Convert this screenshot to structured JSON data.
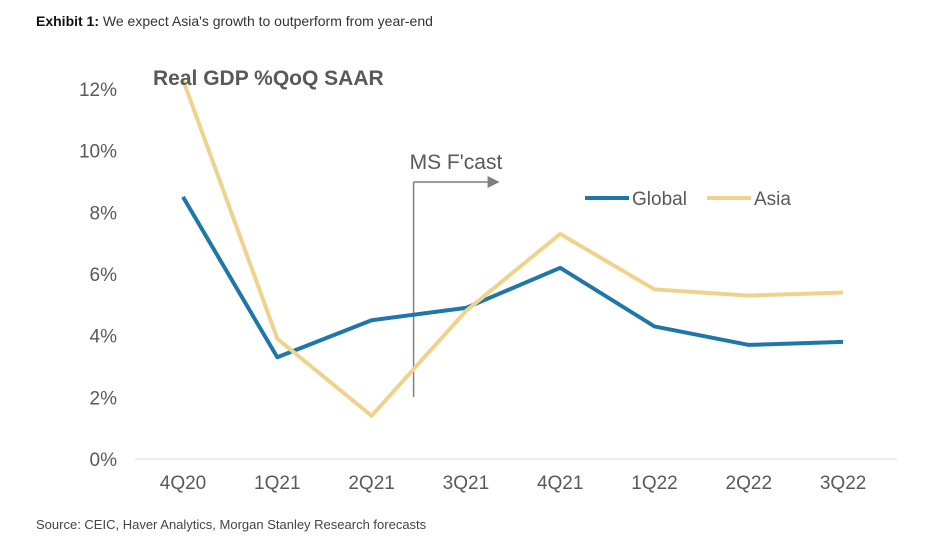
{
  "header": {
    "exhibit_label": "Exhibit 1:",
    "exhibit_text": "We expect Asia's growth to outperform from year-end"
  },
  "source": "Source: CEIC, Haver Analytics, Morgan Stanley Research forecasts",
  "chart_data": {
    "type": "line",
    "title": "Real GDP %QoQ SAAR",
    "categories": [
      "4Q20",
      "1Q21",
      "2Q21",
      "3Q21",
      "4Q21",
      "1Q22",
      "2Q22",
      "3Q22"
    ],
    "series": [
      {
        "name": "Global",
        "color": "#1f77a8",
        "values": [
          8.5,
          3.3,
          4.5,
          4.9,
          6.2,
          4.3,
          3.7,
          3.8
        ]
      },
      {
        "name": "Asia",
        "color": "#efd38c",
        "values": [
          12.3,
          3.9,
          1.4,
          4.8,
          7.3,
          5.5,
          5.3,
          5.4
        ]
      }
    ],
    "ylim": [
      0,
      12
    ],
    "yticks": [
      0,
      2,
      4,
      6,
      8,
      10,
      12
    ],
    "ytick_labels": [
      "0%",
      "2%",
      "4%",
      "6%",
      "8%",
      "10%",
      "12%"
    ],
    "annotation": {
      "text": "MS F'cast",
      "after_category": "2Q21"
    },
    "legend_position": "top-right",
    "grid": false
  }
}
